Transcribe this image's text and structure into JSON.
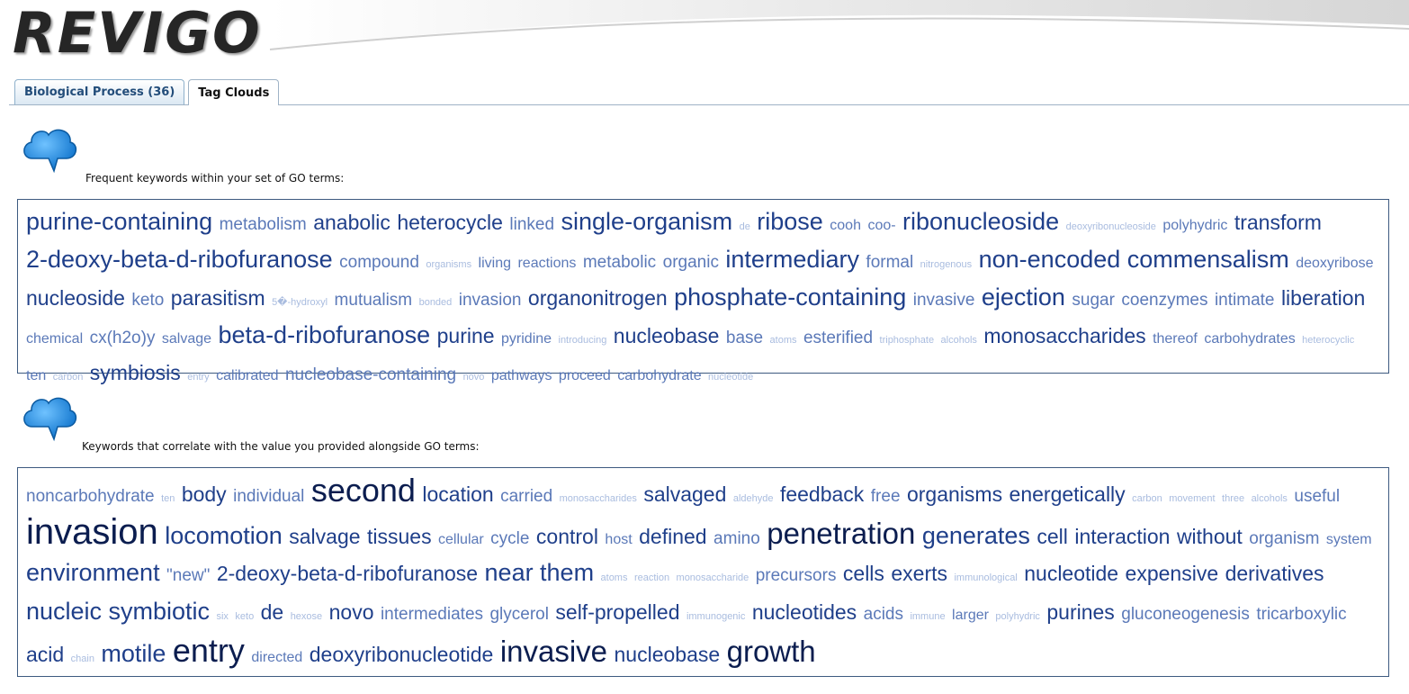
{
  "app": {
    "logo": "REVIGO"
  },
  "tabs": [
    {
      "label": "Biological Process (36)",
      "active": false
    },
    {
      "label": "Tag Clouds",
      "active": true
    }
  ],
  "colors": {
    "tag_dark": "#0b1d4f",
    "tag_mid": "#1f3f8a",
    "tag_light": "#5b79b8",
    "tag_pale": "#a9bcdf",
    "border": "#3d5a80"
  },
  "icons": [
    "cloud-icon",
    "cloud-icon"
  ],
  "clouds": [
    {
      "label": "Frequent keywords within your set of GO terms:",
      "words": [
        [
          "purine-containing",
          4
        ],
        [
          "metabolism",
          2
        ],
        [
          "anabolic",
          3
        ],
        [
          "heterocycle",
          3
        ],
        [
          "linked",
          2
        ],
        [
          "single-organism",
          4
        ],
        [
          "de",
          0
        ],
        [
          "ribose",
          4
        ],
        [
          "cooh",
          1
        ],
        [
          "coo-",
          1
        ],
        [
          "ribonucleoside",
          4
        ],
        [
          "deoxyribonucleoside",
          0
        ],
        [
          "polyhydric",
          1
        ],
        [
          "transform",
          3
        ],
        [
          "2-deoxy-beta-d-ribofuranose",
          4
        ],
        [
          "compound",
          2
        ],
        [
          "organisms",
          0
        ],
        [
          "living",
          1
        ],
        [
          "reactions",
          1
        ],
        [
          "metabolic",
          2
        ],
        [
          "organic",
          2
        ],
        [
          "intermediary",
          4
        ],
        [
          "formal",
          2
        ],
        [
          "nitrogenous",
          0
        ],
        [
          "non-encoded",
          4
        ],
        [
          "commensalism",
          4
        ],
        [
          "deoxyribose",
          1
        ],
        [
          "nucleoside",
          3
        ],
        [
          "keto",
          2
        ],
        [
          "parasitism",
          3
        ],
        [
          "5�-hydroxyl",
          0
        ],
        [
          "mutualism",
          2
        ],
        [
          "bonded",
          0
        ],
        [
          "invasion",
          2
        ],
        [
          "organonitrogen",
          3
        ],
        [
          "phosphate-containing",
          4
        ],
        [
          "invasive",
          2
        ],
        [
          "ejection",
          4
        ],
        [
          "sugar",
          2
        ],
        [
          "coenzymes",
          2
        ],
        [
          "intimate",
          2
        ],
        [
          "liberation",
          3
        ],
        [
          "chemical",
          1
        ],
        [
          "cx(h2o)y",
          2
        ],
        [
          "salvage",
          1
        ],
        [
          "beta-d-ribofuranose",
          4
        ],
        [
          "purine",
          3
        ],
        [
          "pyridine",
          1
        ],
        [
          "introducing",
          0
        ],
        [
          "nucleobase",
          3
        ],
        [
          "base",
          2
        ],
        [
          "atoms",
          0
        ],
        [
          "esterified",
          2
        ],
        [
          "triphosphate",
          0
        ],
        [
          "alcohols",
          0
        ],
        [
          "monosaccharides",
          3
        ],
        [
          "thereof",
          1
        ],
        [
          "carbohydrates",
          1
        ],
        [
          "heterocyclic",
          0
        ],
        [
          "ten",
          1
        ],
        [
          "carbon",
          0
        ],
        [
          "symbiosis",
          3
        ],
        [
          "entry",
          0
        ],
        [
          "calibrated",
          1
        ],
        [
          "nucleobase-containing",
          2
        ],
        [
          "novo",
          0
        ],
        [
          "pathways",
          1
        ],
        [
          "proceed",
          1
        ],
        [
          "carbohydrate",
          1
        ],
        [
          "nucleotide",
          0
        ]
      ]
    },
    {
      "label": "Keywords that correlate with the value you provided alongside GO terms:",
      "words": [
        [
          "noncarbohydrate",
          2
        ],
        [
          "ten",
          0
        ],
        [
          "body",
          3
        ],
        [
          "individual",
          2
        ],
        [
          "second",
          6
        ],
        [
          "location",
          3
        ],
        [
          "carried",
          2
        ],
        [
          "monosaccharides",
          0
        ],
        [
          "salvaged",
          3
        ],
        [
          "aldehyde",
          0
        ],
        [
          "feedback",
          3
        ],
        [
          "free",
          2
        ],
        [
          "organisms",
          3
        ],
        [
          "energetically",
          3
        ],
        [
          "carbon",
          0
        ],
        [
          "movement",
          0
        ],
        [
          "three",
          0
        ],
        [
          "alcohols",
          0
        ],
        [
          "useful",
          2
        ],
        [
          "invasion",
          7
        ],
        [
          "locomotion",
          4
        ],
        [
          "salvage",
          3
        ],
        [
          "tissues",
          3
        ],
        [
          "cellular",
          1
        ],
        [
          "cycle",
          2
        ],
        [
          "control",
          3
        ],
        [
          "host",
          1
        ],
        [
          "defined",
          3
        ],
        [
          "amino",
          2
        ],
        [
          "penetration",
          5
        ],
        [
          "generates",
          4
        ],
        [
          "cell",
          3
        ],
        [
          "interaction",
          3
        ],
        [
          "without",
          3
        ],
        [
          "organism",
          2
        ],
        [
          "system",
          1
        ],
        [
          "environment",
          4
        ],
        [
          "\"new\"",
          2
        ],
        [
          "2-deoxy-beta-d-ribofuranose",
          3
        ],
        [
          "near",
          4
        ],
        [
          "them",
          4
        ],
        [
          "atoms",
          0
        ],
        [
          "reaction",
          0
        ],
        [
          "monosaccharide",
          0
        ],
        [
          "precursors",
          2
        ],
        [
          "cells",
          3
        ],
        [
          "exerts",
          3
        ],
        [
          "immunological",
          0
        ],
        [
          "nucleotide",
          3
        ],
        [
          "expensive",
          3
        ],
        [
          "derivatives",
          3
        ],
        [
          "nucleic",
          4
        ],
        [
          "symbiotic",
          4
        ],
        [
          "six",
          0
        ],
        [
          "keto",
          0
        ],
        [
          "de",
          3
        ],
        [
          "hexose",
          0
        ],
        [
          "novo",
          3
        ],
        [
          "intermediates",
          2
        ],
        [
          "glycerol",
          2
        ],
        [
          "self-propelled",
          3
        ],
        [
          "immunogenic",
          0
        ],
        [
          "nucleotides",
          3
        ],
        [
          "acids",
          2
        ],
        [
          "immune",
          0
        ],
        [
          "larger",
          1
        ],
        [
          "polyhydric",
          0
        ],
        [
          "purines",
          3
        ],
        [
          "gluconeogenesis",
          2
        ],
        [
          "tricarboxylic",
          2
        ],
        [
          "acid",
          3
        ],
        [
          "chain",
          0
        ],
        [
          "motile",
          4
        ],
        [
          "entry",
          6
        ],
        [
          "directed",
          1
        ],
        [
          "deoxyribonucleotide",
          3
        ],
        [
          "invasive",
          5
        ],
        [
          "nucleobase",
          3
        ],
        [
          "growth",
          5
        ]
      ]
    }
  ]
}
